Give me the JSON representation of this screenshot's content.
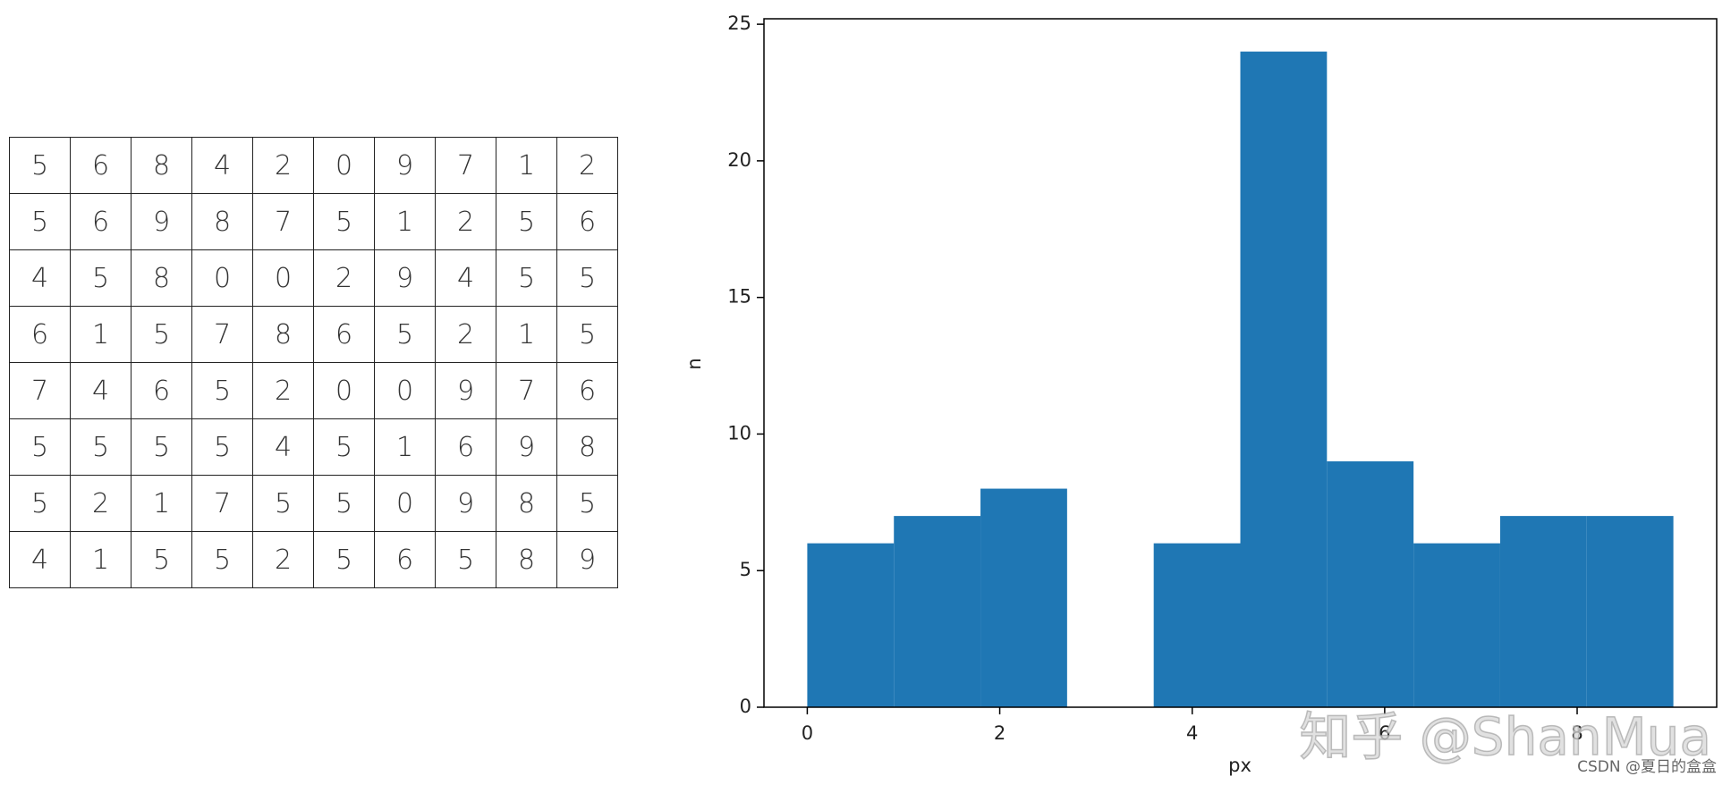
{
  "table": {
    "rows": [
      [
        5,
        6,
        8,
        4,
        2,
        0,
        9,
        7,
        1,
        2
      ],
      [
        5,
        6,
        9,
        8,
        7,
        5,
        1,
        2,
        5,
        6
      ],
      [
        4,
        5,
        8,
        0,
        0,
        2,
        9,
        4,
        5,
        5
      ],
      [
        6,
        1,
        5,
        7,
        8,
        6,
        5,
        2,
        1,
        5
      ],
      [
        7,
        4,
        6,
        5,
        2,
        0,
        0,
        9,
        7,
        6
      ],
      [
        5,
        5,
        5,
        5,
        4,
        5,
        1,
        6,
        9,
        8
      ],
      [
        5,
        2,
        1,
        7,
        5,
        5,
        0,
        9,
        8,
        5
      ],
      [
        4,
        1,
        5,
        5,
        2,
        5,
        6,
        5,
        8,
        9
      ]
    ]
  },
  "chart_data": {
    "type": "histogram",
    "xlabel": "px",
    "ylabel": "n",
    "bins": [
      0,
      0.9,
      1.8,
      2.7,
      3.6,
      4.5,
      5.4,
      6.3,
      7.2,
      8.1,
      9
    ],
    "counts": [
      6,
      7,
      8,
      0,
      6,
      24,
      9,
      6,
      7,
      7
    ],
    "color": "#1f77b4",
    "xlim": [
      -0.45,
      9.45
    ],
    "ylim": [
      0,
      25.2
    ],
    "xticks": [
      0,
      2,
      4,
      6,
      8
    ],
    "yticks": [
      0,
      5,
      10,
      15,
      20,
      25
    ]
  },
  "watermarks": [
    "知乎 @ShanMua",
    "CSDN @夏日的盒盒"
  ]
}
